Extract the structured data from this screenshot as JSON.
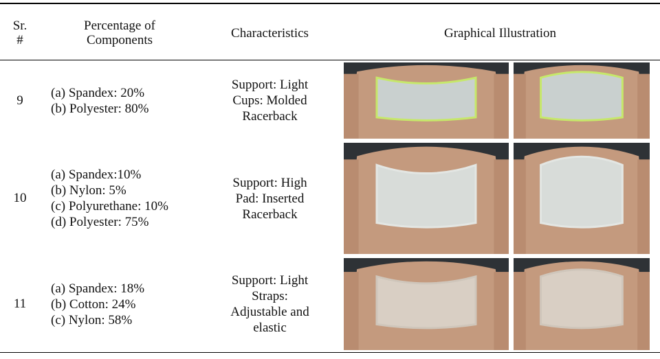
{
  "table": {
    "header": [
      [
        "Sr.",
        "#"
      ],
      [
        "Percentage of",
        "Components"
      ],
      [
        "Characteristics"
      ],
      [
        "Graphical Illustration"
      ]
    ],
    "rows": [
      {
        "sr": "9",
        "components": [
          "(a) Spandex: 20%",
          "(b) Polyester: 80%"
        ],
        "characteristics": [
          "Support: Light",
          "Cups: Molded",
          "Racerback"
        ]
      },
      {
        "sr": "10",
        "components": [
          "(a) Spandex:10%",
          "(b) Nylon: 5%",
          "(c) Polyurethane: 10%",
          "(d) Polyester: 75%"
        ],
        "characteristics": [
          "Support: High",
          "Pad:  Inserted",
          "Racerback"
        ]
      },
      {
        "sr": "11",
        "components": [
          "(a) Spandex: 18%",
          "(b) Cotton: 24%",
          "(c) Nylon: 58%"
        ],
        "characteristics": [
          "Support: Light",
          "Straps:",
          "Adjustable and",
          "elastic"
        ]
      }
    ]
  }
}
